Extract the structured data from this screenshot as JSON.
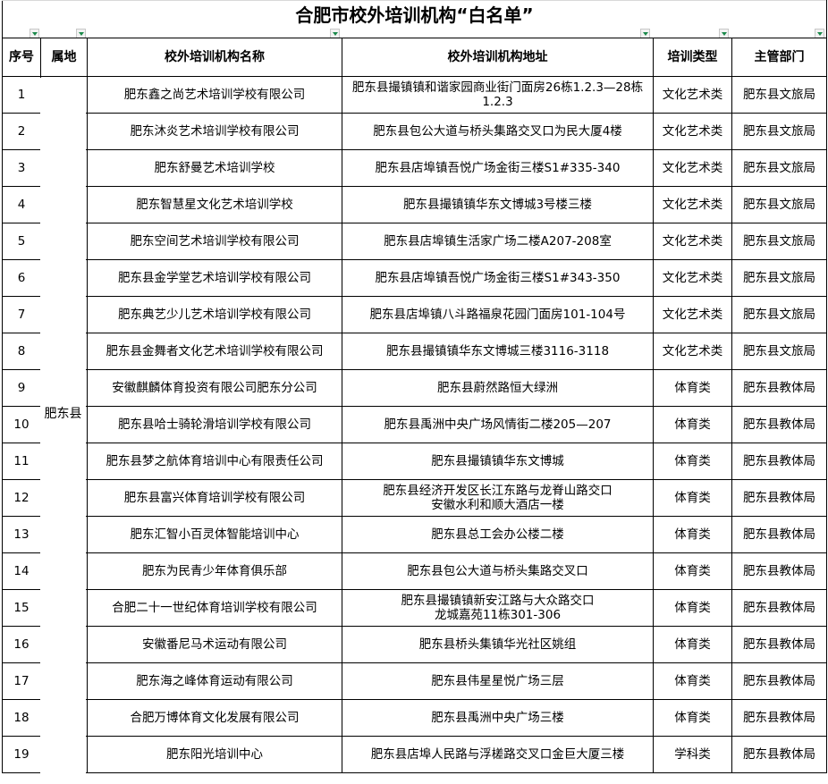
{
  "title": "合肥市校外培训机构“白名单”",
  "columns": [
    "序号",
    "属地",
    "校外培训机构名称",
    "校外培训机构地址",
    "培训类型",
    "主管部门"
  ],
  "region": "肥东县",
  "rows": [
    {
      "no": "1",
      "name": "肥东鑫之尚艺术培训学校有限公司",
      "address": "肥东县撮镇镇和谐家园商业街门面房26栋1.2.3—28栋1.2.3",
      "type": "文化艺术类",
      "dept": "肥东县文旅局"
    },
    {
      "no": "2",
      "name": "肥东沐炎艺术培训学校有限公司",
      "address": "肥东县包公大道与桥头集路交叉口为民大厦4楼",
      "type": "文化艺术类",
      "dept": "肥东县文旅局"
    },
    {
      "no": "3",
      "name": "肥东舒曼艺术培训学校",
      "address": "肥东县店埠镇吾悦广场金街三楼S1#335-340",
      "type": "文化艺术类",
      "dept": "肥东县文旅局"
    },
    {
      "no": "4",
      "name": "肥东智慧星文化艺术培训学校",
      "address": "肥东县撮镇镇华东文博城3号楼三楼",
      "type": "文化艺术类",
      "dept": "肥东县文旅局"
    },
    {
      "no": "5",
      "name": "肥东空间艺术培训学校有限公司",
      "address": "肥东县店埠镇生活家广场二楼A207-208室",
      "type": "文化艺术类",
      "dept": "肥东县文旅局"
    },
    {
      "no": "6",
      "name": "肥东县金学堂艺术培训学校有限公司",
      "address": "肥东县店埠镇吾悦广场金街三楼S1#343-350",
      "type": "文化艺术类",
      "dept": "肥东县文旅局"
    },
    {
      "no": "7",
      "name": "肥东典艺少儿艺术培训学校有限公司",
      "address": "肥东县店埠镇八斗路福泉花园门面房101-104号",
      "type": "文化艺术类",
      "dept": "肥东县文旅局"
    },
    {
      "no": "8",
      "name": "肥东县金舞者文化艺术培训学校有限公司",
      "address": "肥东县撮镇镇华东文博城三楼3116-3118",
      "type": "文化艺术类",
      "dept": "肥东县文旅局"
    },
    {
      "no": "9",
      "name": "安徽麒麟体育投资有限公司肥东分公司",
      "address": "肥东县蔚然路恒大绿洲",
      "type": "体育类",
      "dept": "肥东县教体局"
    },
    {
      "no": "10",
      "name": "肥东县哈士骑轮滑培训学校有限公司",
      "address": "肥东县禹洲中央广场风情街二楼205—207",
      "type": "体育类",
      "dept": "肥东县教体局"
    },
    {
      "no": "11",
      "name": "肥东县梦之航体育培训中心有限责任公司",
      "address": "肥东县撮镇镇华东文博城",
      "type": "体育类",
      "dept": "肥东县教体局"
    },
    {
      "no": "12",
      "name": "肥东县富兴体育培训学校有限公司",
      "address": "肥东县经济开发区长江东路与龙脊山路交口\n安徽水利和顺大酒店一楼",
      "type": "体育类",
      "dept": "肥东县教体局"
    },
    {
      "no": "13",
      "name": "肥东汇智小百灵体智能培训中心",
      "address": "肥东县总工会办公楼二楼",
      "type": "体育类",
      "dept": "肥东县教体局"
    },
    {
      "no": "14",
      "name": "肥东为民青少年体育俱乐部",
      "address": "肥东县包公大道与桥头集路交叉口",
      "type": "体育类",
      "dept": "肥东县教体局"
    },
    {
      "no": "15",
      "name": "合肥二十一世纪体育培训学校有限公司",
      "address": "肥东县撮镇镇新安江路与大众路交口\n龙城嘉苑11栋301-306",
      "type": "体育类",
      "dept": "肥东县教体局"
    },
    {
      "no": "16",
      "name": "安徽番尼马术运动有限公司",
      "address": "肥东县桥头集镇华光社区姚组",
      "type": "体育类",
      "dept": "肥东县教体局"
    },
    {
      "no": "17",
      "name": "肥东海之峰体育运动有限公司",
      "address": "肥东县伟星星悦广场三层",
      "type": "体育类",
      "dept": "肥东县教体局"
    },
    {
      "no": "18",
      "name": "合肥万博体育文化发展有限公司",
      "address": "肥东县禹洲中央广场三楼",
      "type": "体育类",
      "dept": "肥东县教体局"
    },
    {
      "no": "19",
      "name": "肥东阳光培训中心",
      "address": "肥东县店埠人民路与浮槎路交叉口金巨大厦三楼",
      "type": "学科类",
      "dept": "肥东县教体局"
    }
  ],
  "colors": {
    "filter_arrow": "#1a8a4a",
    "grid": "#000000"
  }
}
